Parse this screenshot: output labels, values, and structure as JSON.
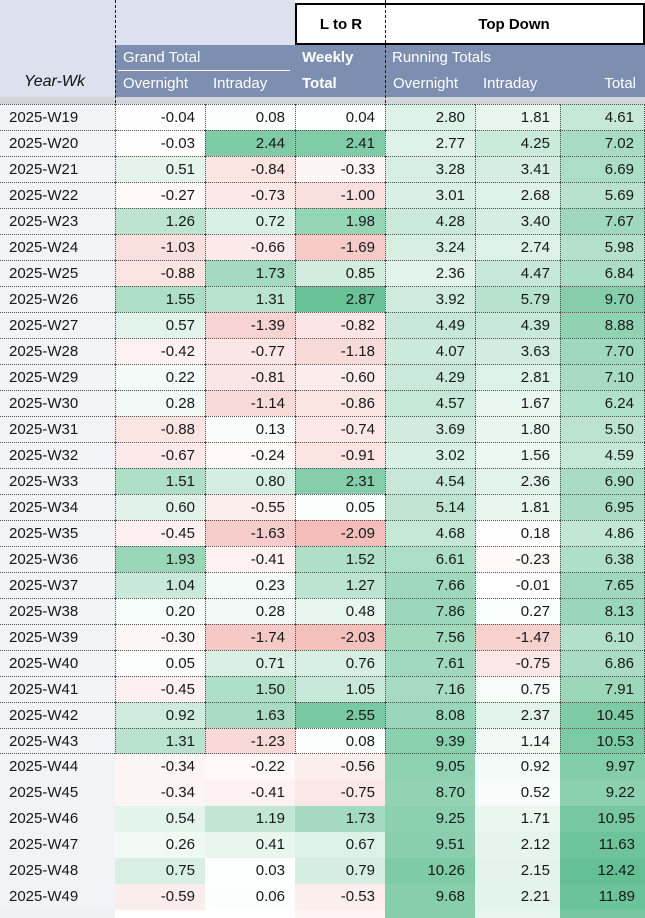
{
  "header": {
    "corner": "Year-Wk",
    "flow_left": "L to R",
    "flow_right": "Top Down",
    "grand_total": "Grand Total",
    "weekly_line1": "Weekly",
    "weekly_line2": "Total",
    "running": "Running Totals",
    "overnight": "Overnight",
    "intraday": "Intraday",
    "total": "Total"
  },
  "colors": {
    "slate_header": "#7d8fb1",
    "header_light": "#dbe1ee",
    "year_cell": "#f2f3f6",
    "grey_strip": "#d2d6db",
    "positive": "#57bb8a",
    "negative": "#e67c73"
  },
  "scales": {
    "left_max": 3.2,
    "left_min": -4.2,
    "right_max": 13.5,
    "right_min": -4.2
  },
  "rows": [
    {
      "week": "2025-W19",
      "values": [
        -0.04,
        0.08,
        0.04,
        2.8,
        1.81,
        4.61
      ],
      "bordered": true
    },
    {
      "week": "2025-W20",
      "values": [
        -0.03,
        2.44,
        2.41,
        2.77,
        4.25,
        7.02
      ],
      "bordered": true
    },
    {
      "week": "2025-W21",
      "values": [
        0.51,
        -0.84,
        -0.33,
        3.28,
        3.41,
        6.69
      ],
      "bordered": true
    },
    {
      "week": "2025-W22",
      "values": [
        -0.27,
        -0.73,
        -1.0,
        3.01,
        2.68,
        5.69
      ],
      "bordered": true
    },
    {
      "week": "2025-W23",
      "values": [
        1.26,
        0.72,
        1.98,
        4.28,
        3.4,
        7.67
      ],
      "bordered": true
    },
    {
      "week": "2025-W24",
      "values": [
        -1.03,
        -0.66,
        -1.69,
        3.24,
        2.74,
        5.98
      ],
      "bordered": true
    },
    {
      "week": "2025-W25",
      "values": [
        -0.88,
        1.73,
        0.85,
        2.36,
        4.47,
        6.84
      ],
      "bordered": true
    },
    {
      "week": "2025-W26",
      "values": [
        1.55,
        1.31,
        2.87,
        3.92,
        5.79,
        9.7
      ],
      "bordered": true
    },
    {
      "week": "2025-W27",
      "values": [
        0.57,
        -1.39,
        -0.82,
        4.49,
        4.39,
        8.88
      ],
      "bordered": true
    },
    {
      "week": "2025-W28",
      "values": [
        -0.42,
        -0.77,
        -1.18,
        4.07,
        3.63,
        7.7
      ],
      "bordered": true
    },
    {
      "week": "2025-W29",
      "values": [
        0.22,
        -0.81,
        -0.6,
        4.29,
        2.81,
        7.1
      ],
      "bordered": true
    },
    {
      "week": "2025-W30",
      "values": [
        0.28,
        -1.14,
        -0.86,
        4.57,
        1.67,
        6.24
      ],
      "bordered": true
    },
    {
      "week": "2025-W31",
      "values": [
        -0.88,
        0.13,
        -0.74,
        3.69,
        1.8,
        5.5
      ],
      "bordered": true
    },
    {
      "week": "2025-W32",
      "values": [
        -0.67,
        -0.24,
        -0.91,
        3.02,
        1.56,
        4.59
      ],
      "bordered": true
    },
    {
      "week": "2025-W33",
      "values": [
        1.51,
        0.8,
        2.31,
        4.54,
        2.36,
        6.9
      ],
      "bordered": true
    },
    {
      "week": "2025-W34",
      "values": [
        0.6,
        -0.55,
        0.05,
        5.14,
        1.81,
        6.95
      ],
      "bordered": true
    },
    {
      "week": "2025-W35",
      "values": [
        -0.45,
        -1.63,
        -2.09,
        4.68,
        0.18,
        4.86
      ],
      "bordered": true
    },
    {
      "week": "2025-W36",
      "values": [
        1.93,
        -0.41,
        1.52,
        6.61,
        -0.23,
        6.38
      ],
      "bordered": true
    },
    {
      "week": "2025-W37",
      "values": [
        1.04,
        0.23,
        1.27,
        7.66,
        -0.01,
        7.65
      ],
      "bordered": true
    },
    {
      "week": "2025-W38",
      "values": [
        0.2,
        0.28,
        0.48,
        7.86,
        0.27,
        8.13
      ],
      "bordered": true
    },
    {
      "week": "2025-W39",
      "values": [
        -0.3,
        -1.74,
        -2.03,
        7.56,
        -1.47,
        6.1
      ],
      "bordered": true
    },
    {
      "week": "2025-W40",
      "values": [
        0.05,
        0.71,
        0.76,
        7.61,
        -0.75,
        6.86
      ],
      "bordered": true
    },
    {
      "week": "2025-W41",
      "values": [
        -0.45,
        1.5,
        1.05,
        7.16,
        0.75,
        7.91
      ],
      "bordered": true
    },
    {
      "week": "2025-W42",
      "values": [
        0.92,
        1.63,
        2.55,
        8.08,
        2.37,
        10.45
      ],
      "bordered": true
    },
    {
      "week": "2025-W43",
      "values": [
        1.31,
        -1.23,
        0.08,
        9.39,
        1.14,
        10.53
      ],
      "bordered": true
    },
    {
      "week": "2025-W44",
      "values": [
        -0.34,
        -0.22,
        -0.56,
        9.05,
        0.92,
        9.97
      ],
      "bordered": false
    },
    {
      "week": "2025-W45",
      "values": [
        -0.34,
        -0.41,
        -0.75,
        8.7,
        0.52,
        9.22
      ],
      "bordered": false
    },
    {
      "week": "2025-W46",
      "values": [
        0.54,
        1.19,
        1.73,
        9.25,
        1.71,
        10.95
      ],
      "bordered": false
    },
    {
      "week": "2025-W47",
      "values": [
        0.26,
        0.41,
        0.67,
        9.51,
        2.12,
        11.63
      ],
      "bordered": false
    },
    {
      "week": "2025-W48",
      "values": [
        0.75,
        0.03,
        0.79,
        10.26,
        2.15,
        12.42
      ],
      "bordered": false
    },
    {
      "week": "2025-W49",
      "values": [
        -0.59,
        0.06,
        -0.53,
        9.68,
        2.21,
        11.89
      ],
      "bordered": false
    }
  ],
  "partial_row": {
    "colors": [
      "#f0f1f3",
      "#ffffff",
      "#ffffff",
      "#fdf3f2",
      "#88cdaa",
      "#e8f4ee",
      "#79c59e"
    ]
  }
}
